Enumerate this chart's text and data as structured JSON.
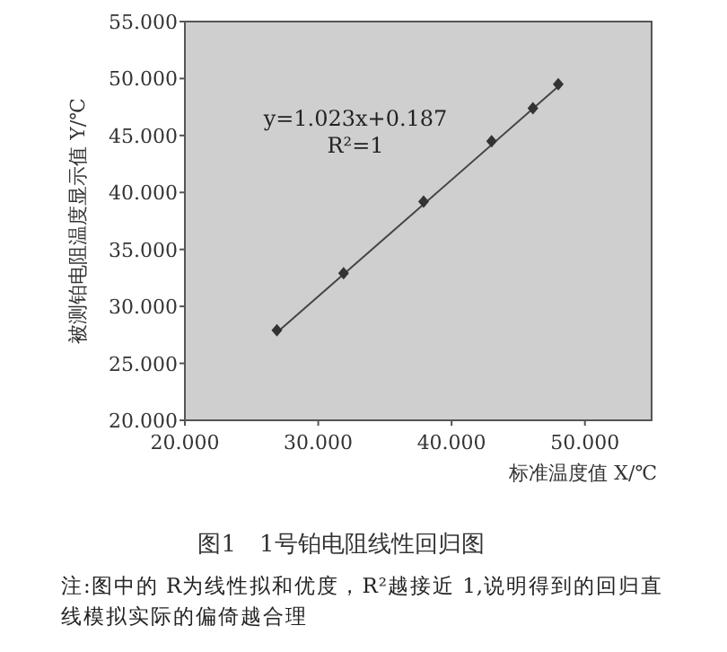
{
  "chart_data": {
    "type": "scatter",
    "title": "图1　1号铂电阻线性回归图",
    "xlabel": "标准温度值 X/℃",
    "ylabel": "被测铂电阻温度显示值 Y/℃",
    "annotations": [
      "y=1.023x+0.187",
      "R²=1",
      "注:图中的 R为线性拟和优度，R²越接近 1,说明得到的回归直线模拟实际的偏倚越合理"
    ],
    "xlim": [
      20,
      55
    ],
    "ylim": [
      20,
      55
    ],
    "xticks": [
      {
        "value": 20,
        "label": "20.000"
      },
      {
        "value": 30,
        "label": "30.000"
      },
      {
        "value": 40,
        "label": "40.000"
      },
      {
        "value": 50,
        "label": "50.000"
      }
    ],
    "yticks": [
      {
        "value": 20,
        "label": "20.000"
      },
      {
        "value": 25,
        "label": "25.000"
      },
      {
        "value": 30,
        "label": "30.000"
      },
      {
        "value": 35,
        "label": "35.000"
      },
      {
        "value": 40,
        "label": "40.000"
      },
      {
        "value": 45,
        "label": "45.000"
      },
      {
        "value": 50,
        "label": "50.000"
      },
      {
        "value": 55,
        "label": "55.000"
      }
    ],
    "series": [
      {
        "marker": "diamond",
        "color": "#333333",
        "x": [
          26.9,
          31.9,
          37.9,
          43.0,
          46.1,
          48.0
        ],
        "values": [
          27.9,
          32.9,
          39.2,
          44.5,
          47.4,
          49.5
        ]
      },
      {
        "type": "line",
        "color": "#444444",
        "x": [
          26.9,
          48.0
        ],
        "values": [
          27.7,
          49.3
        ]
      }
    ]
  }
}
